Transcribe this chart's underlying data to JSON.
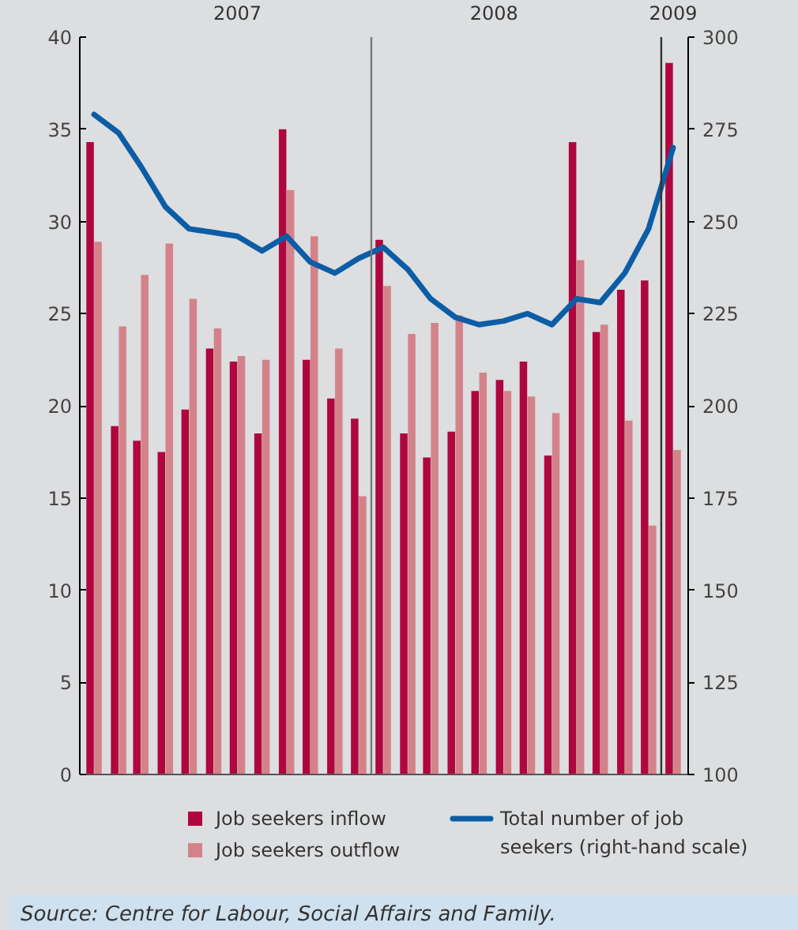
{
  "chart_data": {
    "type": "bar",
    "x": [
      "2007-01",
      "2007-02",
      "2007-03",
      "2007-04",
      "2007-05",
      "2007-06",
      "2007-07",
      "2007-08",
      "2007-09",
      "2007-10",
      "2007-11",
      "2007-12",
      "2008-01",
      "2008-02",
      "2008-03",
      "2008-04",
      "2008-05",
      "2008-06",
      "2008-07",
      "2008-08",
      "2008-09",
      "2008-10",
      "2008-11",
      "2008-12",
      "2009-01"
    ],
    "series": [
      {
        "name": "Job seekers inflow",
        "color": "#b0063f",
        "values": [
          34.3,
          18.9,
          18.1,
          17.5,
          19.8,
          23.1,
          22.4,
          18.5,
          35.0,
          22.5,
          20.4,
          19.3,
          29.0,
          18.5,
          17.2,
          18.6,
          20.8,
          21.4,
          22.4,
          17.3,
          34.3,
          24.0,
          26.3,
          26.8,
          38.6
        ]
      },
      {
        "name": "Job seekers outflow",
        "color": "#d4828a",
        "values": [
          28.9,
          24.3,
          27.1,
          28.8,
          25.8,
          24.2,
          22.7,
          22.5,
          31.7,
          29.2,
          23.1,
          15.1,
          26.5,
          23.9,
          24.5,
          24.9,
          21.8,
          20.8,
          20.5,
          19.6,
          27.9,
          24.4,
          19.2,
          13.5,
          17.6
        ]
      },
      {
        "name": "Total number of job seekers (right-hand scale)",
        "type": "line",
        "axis": "y2",
        "color": "#0c5da5",
        "values": [
          279,
          274,
          265,
          254,
          248,
          247,
          246,
          242,
          246,
          239,
          236,
          240,
          243,
          237,
          229,
          224,
          222,
          223,
          225,
          222,
          229,
          228,
          236,
          248,
          270
        ]
      }
    ],
    "xlim": [
      "2006-12-14",
      "2009-01-20"
    ],
    "xticks": [
      {
        "value": "2007-07-01",
        "label": "2007"
      },
      {
        "value": "2008-05-20",
        "label": "2008"
      },
      {
        "value": "2009-01-01",
        "label": "2009"
      }
    ],
    "ylim": [
      0,
      40
    ],
    "yticks": [
      0,
      5,
      10,
      15,
      20,
      25,
      30,
      35,
      40
    ],
    "y2lim": [
      100,
      300
    ],
    "y2ticks": [
      100,
      125,
      150,
      175,
      200,
      225,
      250,
      275,
      300
    ],
    "ref_lines": [
      {
        "axis": "x",
        "value": "2007-12-17",
        "color": "#777777"
      },
      {
        "axis": "x",
        "value": "2008-12-17",
        "color": "#333333"
      }
    ],
    "grid": false,
    "legend": "bottom",
    "annotations": [
      "Source: Centre for Labour, Social Affairs and Family."
    ]
  }
}
